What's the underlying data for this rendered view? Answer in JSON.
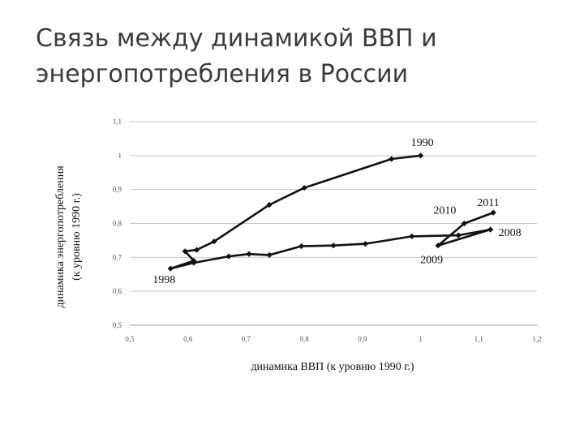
{
  "slide": {
    "title_line1": "Связь между динамикой ВВП и",
    "title_line2": "энергопотребления в России"
  },
  "chart_data": {
    "type": "line",
    "xlabel": "динамика ВВП (к уровню 1990 г.)",
    "ylabel_line1": "динамика энергопотребления",
    "ylabel_line2": "(к уровню 1990 г.)",
    "xlim": [
      0.5,
      1.2
    ],
    "ylim": [
      0.5,
      1.1
    ],
    "x_ticks": [
      "0,5",
      "0,6",
      "0,7",
      "0,8",
      "0,9",
      "1",
      "1,1",
      "1,2"
    ],
    "x_tick_values": [
      0.5,
      0.6,
      0.7,
      0.8,
      0.9,
      1.0,
      1.1,
      1.2
    ],
    "y_ticks": [
      "0,5",
      "0,6",
      "0,7",
      "0,8",
      "0,9",
      "1",
      "1,1"
    ],
    "y_tick_values": [
      0.5,
      0.6,
      0.7,
      0.8,
      0.9,
      1.0,
      1.1
    ],
    "grid": "horizontal",
    "line_color": "#111111",
    "series": [
      {
        "points": [
          [
            1.0,
            1.0
          ],
          [
            0.95,
            0.99
          ],
          [
            0.8,
            0.905
          ],
          [
            0.74,
            0.855
          ],
          [
            0.645,
            0.747
          ],
          [
            0.615,
            0.722
          ],
          [
            0.595,
            0.718
          ],
          [
            0.61,
            0.69
          ],
          [
            0.57,
            0.667
          ],
          [
            0.61,
            0.684
          ],
          [
            0.67,
            0.703
          ],
          [
            0.705,
            0.71
          ],
          [
            0.74,
            0.707
          ],
          [
            0.795,
            0.733
          ],
          [
            0.85,
            0.735
          ],
          [
            0.905,
            0.74
          ],
          [
            0.985,
            0.762
          ],
          [
            1.065,
            0.765
          ],
          [
            1.12,
            0.782
          ],
          [
            1.03,
            0.735
          ],
          [
            1.075,
            0.8
          ],
          [
            1.125,
            0.832
          ]
        ]
      }
    ],
    "annotations": [
      {
        "text": "1990",
        "x": 1.0,
        "y": 1.0
      },
      {
        "text": "1998",
        "x": 0.57,
        "y": 0.667
      },
      {
        "text": "2008",
        "x": 1.12,
        "y": 0.782
      },
      {
        "text": "2009",
        "x": 1.03,
        "y": 0.735
      },
      {
        "text": "2010",
        "x": 1.075,
        "y": 0.8
      },
      {
        "text": "2011",
        "x": 1.125,
        "y": 0.832
      }
    ]
  }
}
